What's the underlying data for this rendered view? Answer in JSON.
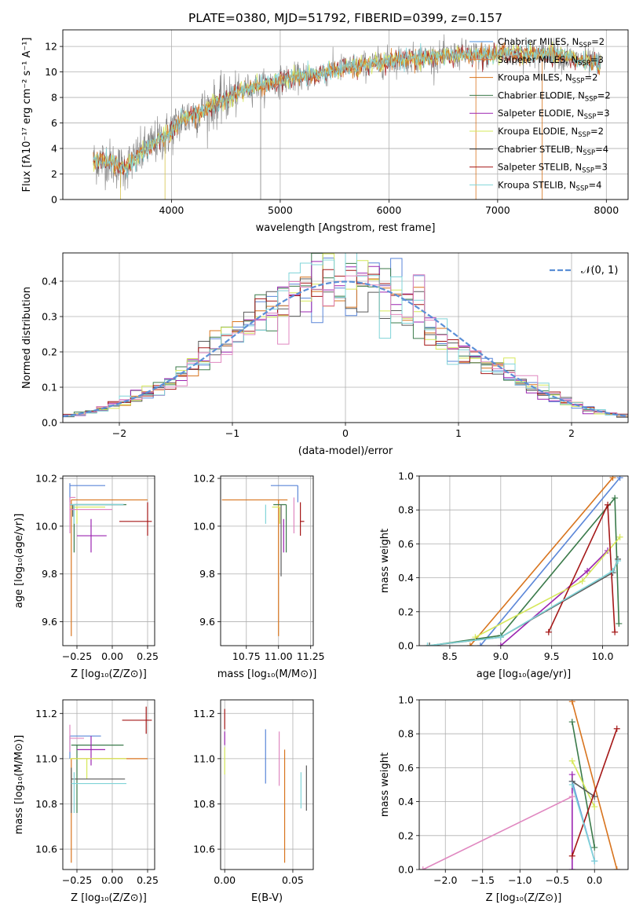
{
  "title": "PLATE=0380, MJD=51792, FIBERID=0399, z=0.157",
  "colors": {
    "Chabrier MILES": "#5a86d8",
    "Salpeter MILES": "#d8741e",
    "Kroupa MILES": "#d8741e",
    "Chabrier ELODIE": "#3a7a4a",
    "Salpeter ELODIE": "#9b24b0",
    "Kroupa ELODIE": "#d6e85a",
    "Chabrier STELIB": "#5a5a5a",
    "Salpeter STELIB": "#a51818",
    "Kroupa STELIB": "#80d4d8",
    "extra": "#e087c0",
    "data": "#808080",
    "normal": "#5b8fd6"
  },
  "legend": [
    {
      "label": "Chabrier MILES, N",
      "sub": "SSP",
      "tail": "=2",
      "color": "#4a90e2"
    },
    {
      "label": "Salpeter MILES, N",
      "sub": "SSP",
      "tail": "=3",
      "color": "#e07b39"
    },
    {
      "label": "Kroupa MILES, N",
      "sub": "SSP",
      "tail": "=2",
      "color": "#d8741e"
    },
    {
      "label": "Chabrier ELODIE, N",
      "sub": "SSP",
      "tail": "=2",
      "color": "#3a7a4a"
    },
    {
      "label": "Salpeter ELODIE, N",
      "sub": "SSP",
      "tail": "=3",
      "color": "#9b24b0"
    },
    {
      "label": "Kroupa ELODIE, N",
      "sub": "SSP",
      "tail": "=2",
      "color": "#d6e85a"
    },
    {
      "label": "Chabrier STELIB, N",
      "sub": "SSP",
      "tail": "=4",
      "color": "#333333"
    },
    {
      "label": "Salpeter STELIB, N",
      "sub": "SSP",
      "tail": "=3",
      "color": "#a51818"
    },
    {
      "label": "Kroupa STELIB, N",
      "sub": "SSP",
      "tail": "=4",
      "color": "#80d4d8"
    }
  ],
  "chart_data": [
    {
      "type": "line",
      "id": "spectrum",
      "xlabel": "wavelength [Angstrom, rest frame]",
      "ylabel": "Flux [fλ10⁻¹⁷ erg cm⁻² s⁻¹ A⁻¹]",
      "xlim": [
        3000,
        8200
      ],
      "ylim": [
        0,
        13.3
      ],
      "xticks": [
        4000,
        5000,
        6000,
        7000,
        8000
      ],
      "yticks": [
        0,
        2,
        4,
        6,
        8,
        10,
        12
      ],
      "continuum": {
        "x": [
          3280,
          3400,
          3550,
          3700,
          3800,
          3950,
          4100,
          4300,
          4500,
          4700,
          4900,
          5100,
          5300,
          5500,
          5700,
          5900,
          6100,
          6300,
          6500,
          6700,
          6900,
          7100,
          7300,
          7500,
          7700,
          7900
        ],
        "y": [
          3.0,
          3.1,
          2.4,
          3.4,
          4.2,
          5.0,
          6.3,
          7.0,
          7.9,
          8.7,
          9.1,
          9.5,
          9.7,
          10.2,
          10.4,
          10.7,
          11.0,
          11.1,
          11.2,
          11.4,
          11.3,
          11.5,
          11.3,
          11.4,
          11.0,
          10.6
        ]
      }
    },
    {
      "type": "bar",
      "id": "residuals",
      "xlabel": "(data-model)/error",
      "ylabel": "Normed distribution",
      "xlim": [
        -2.5,
        2.5
      ],
      "ylim": [
        0,
        0.48
      ],
      "xticks": [
        -2,
        -1,
        0,
        1,
        2
      ],
      "yticks": [
        0.0,
        0.1,
        0.2,
        0.3,
        0.4
      ],
      "legend": "𝒩(0, 1)",
      "bin_width": 0.1
    },
    {
      "type": "scatter",
      "id": "Z-age",
      "xlabel": "Z [log₁₀(Z/Z⊙)]",
      "ylabel": "age  [log₁₀(age/yr)]",
      "xlim": [
        -0.35,
        0.3
      ],
      "ylim": [
        9.5,
        10.21
      ],
      "xticks": [
        -0.25,
        0.0,
        0.25
      ],
      "yticks": [
        9.6,
        9.8,
        10.0,
        10.2
      ],
      "points": [
        {
          "x": -0.29,
          "y": 10.11,
          "xerr": [
            0.0,
            0.54
          ],
          "yerr": [
            0.57,
            0.0
          ],
          "c": "#d8741e"
        },
        {
          "x": -0.3,
          "y": 10.17,
          "xerr": [
            0.0,
            0.25
          ],
          "yerr": [
            0.07,
            0.01
          ],
          "c": "#5a86d8"
        },
        {
          "x": -0.27,
          "y": 10.09,
          "xerr": [
            0.0,
            0.37
          ],
          "yerr": [
            0.2,
            0.0
          ],
          "c": "#3a7a4a"
        },
        {
          "x": -0.15,
          "y": 9.96,
          "xerr": [
            0.1,
            0.11
          ],
          "yerr": [
            0.07,
            0.07
          ],
          "c": "#9b24b0"
        },
        {
          "x": -0.3,
          "y": 10.12,
          "xerr": [
            0.0,
            0.04
          ],
          "yerr": [
            0.15,
            0.0
          ],
          "c": "#e087c0"
        },
        {
          "x": -0.25,
          "y": 10.08,
          "xerr": [
            0.05,
            0.2
          ],
          "yerr": [
            0.07,
            0.0
          ],
          "c": "#d6e85a"
        },
        {
          "x": -0.28,
          "y": 10.09,
          "xerr": [
            0.02,
            0.36
          ],
          "yerr": [
            0.05,
            0.0
          ],
          "c": "#5a5a5a"
        },
        {
          "x": 0.25,
          "y": 10.02,
          "xerr": [
            0.2,
            0.03
          ],
          "yerr": [
            0.06,
            0.08
          ],
          "c": "#a51818"
        },
        {
          "x": -0.27,
          "y": 10.09,
          "xerr": [
            0.03,
            0.35
          ],
          "yerr": [
            0.08,
            0.0
          ],
          "c": "#80d4d8"
        },
        {
          "x": -0.3,
          "y": 10.07,
          "xerr": [
            0.0,
            0.3
          ],
          "yerr": [
            0.0,
            0.0
          ],
          "c": "#e087c0"
        }
      ]
    },
    {
      "type": "scatter",
      "id": "mass-age",
      "xlabel": "mass [log₁₀(M/M⊙)]",
      "ylabel": "",
      "xlim": [
        10.55,
        11.27
      ],
      "ylim": [
        9.5,
        10.21
      ],
      "xticks": [
        10.75,
        11.0,
        11.25
      ],
      "yticks": [
        9.6,
        9.8,
        10.0,
        10.2
      ],
      "points": [
        {
          "x": 11.0,
          "y": 10.11,
          "xerr": [
            0.44,
            0.07
          ],
          "yerr": [
            0.57,
            0.0
          ],
          "c": "#d8741e"
        },
        {
          "x": 11.15,
          "y": 10.17,
          "xerr": [
            0.21,
            0.0
          ],
          "yerr": [
            0.07,
            0.0
          ],
          "c": "#5a86d8"
        },
        {
          "x": 11.06,
          "y": 10.09,
          "xerr": [
            0.1,
            0.0
          ],
          "yerr": [
            0.2,
            0.0
          ],
          "c": "#3a7a4a"
        },
        {
          "x": 11.04,
          "y": 9.96,
          "xerr": [
            0.0,
            0.0
          ],
          "yerr": [
            0.07,
            0.07
          ],
          "c": "#9b24b0"
        },
        {
          "x": 11.12,
          "y": 10.12,
          "xerr": [
            0.0,
            0.0
          ],
          "yerr": [
            0.15,
            0.0
          ],
          "c": "#e087c0"
        },
        {
          "x": 11.01,
          "y": 10.08,
          "xerr": [
            0.06,
            0.0
          ],
          "yerr": [
            0.07,
            0.0
          ],
          "c": "#d6e85a"
        },
        {
          "x": 11.02,
          "y": 10.09,
          "xerr": [
            0.0,
            0.0
          ],
          "yerr": [
            0.3,
            0.0
          ],
          "c": "#5a5a5a"
        },
        {
          "x": 11.17,
          "y": 10.02,
          "xerr": [
            0.0,
            0.03
          ],
          "yerr": [
            0.06,
            0.08
          ],
          "c": "#a51818"
        },
        {
          "x": 10.9,
          "y": 10.09,
          "xerr": [
            0.0,
            0.0
          ],
          "yerr": [
            0.08,
            0.0
          ],
          "c": "#80d4d8"
        }
      ]
    },
    {
      "type": "line",
      "id": "age-weight",
      "xlabel": "age  [log₁₀(age/yr)]",
      "ylabel": "mass weight",
      "xlim": [
        8.2,
        10.25
      ],
      "ylim": [
        0,
        1.0
      ],
      "xticks": [
        8.5,
        9.0,
        9.5,
        10.0
      ],
      "yticks": [
        0.0,
        0.2,
        0.4,
        0.6,
        0.8,
        1.0
      ],
      "series": [
        {
          "c": "#5a86d8",
          "x": [
            8.8,
            10.17
          ],
          "y": [
            0.0,
            0.99
          ]
        },
        {
          "c": "#d8741e",
          "x": [
            8.7,
            10.1
          ],
          "y": [
            0.0,
            0.99
          ]
        },
        {
          "c": "#3a7a4a",
          "x": [
            8.3,
            9.0,
            10.12,
            10.16
          ],
          "y": [
            0.0,
            0.06,
            0.87,
            0.13
          ]
        },
        {
          "c": "#9b24b0",
          "x": [
            9.0,
            9.85,
            10.05
          ],
          "y": [
            0.0,
            0.44,
            0.56
          ]
        },
        {
          "c": "#d6e85a",
          "x": [
            8.75,
            9.8,
            10.17
          ],
          "y": [
            0.05,
            0.38,
            0.64
          ]
        },
        {
          "c": "#5a5a5a",
          "x": [
            8.3,
            9.0,
            10.1,
            10.15
          ],
          "y": [
            0.0,
            0.05,
            0.43,
            0.51
          ]
        },
        {
          "c": "#a51818",
          "x": [
            9.47,
            10.05,
            10.12
          ],
          "y": [
            0.08,
            0.83,
            0.08
          ]
        },
        {
          "c": "#80d4d8",
          "x": [
            8.28,
            9.0,
            10.1,
            10.15
          ],
          "y": [
            0.0,
            0.05,
            0.44,
            0.5
          ]
        }
      ]
    },
    {
      "type": "scatter",
      "id": "Z-mass",
      "xlabel": "Z [log₁₀(Z/Z⊙)]",
      "ylabel": "mass [log₁₀(M/M⊙)]",
      "xlim": [
        -0.35,
        0.3
      ],
      "ylim": [
        10.51,
        11.26
      ],
      "xticks": [
        -0.25,
        0.0,
        0.25
      ],
      "yticks": [
        10.6,
        10.8,
        11.0,
        11.2
      ],
      "points": [
        {
          "x": -0.29,
          "y": 11.0,
          "xerr": [
            0.0,
            0.54
          ],
          "yerr": [
            0.46,
            0.0
          ],
          "c": "#d8741e"
        },
        {
          "x": -0.3,
          "y": 11.1,
          "xerr": [
            0.0,
            0.22
          ],
          "yerr": [
            0.1,
            0.0
          ],
          "c": "#5a86d8"
        },
        {
          "x": -0.25,
          "y": 11.06,
          "xerr": [
            0.04,
            0.33
          ],
          "yerr": [
            0.3,
            0.0
          ],
          "c": "#3a7a4a"
        },
        {
          "x": -0.15,
          "y": 11.04,
          "xerr": [
            0.1,
            0.1
          ],
          "yerr": [
            0.07,
            0.06
          ],
          "c": "#9b24b0"
        },
        {
          "x": -0.3,
          "y": 11.09,
          "xerr": [
            0.0,
            0.1
          ],
          "yerr": [
            0.06,
            0.06
          ],
          "c": "#e087c0"
        },
        {
          "x": -0.18,
          "y": 11.0,
          "xerr": [
            0.12,
            0.28
          ],
          "yerr": [
            0.09,
            0.0
          ],
          "c": "#d6e85a"
        },
        {
          "x": -0.29,
          "y": 10.91,
          "xerr": [
            0.0,
            0.38
          ],
          "yerr": [
            0.15,
            0.05
          ],
          "c": "#5a5a5a"
        },
        {
          "x": 0.24,
          "y": 11.17,
          "xerr": [
            0.17,
            0.04
          ],
          "yerr": [
            0.06,
            0.06
          ],
          "c": "#a51818"
        },
        {
          "x": -0.27,
          "y": 10.89,
          "xerr": [
            0.02,
            0.37
          ],
          "yerr": [
            0.13,
            0.05
          ],
          "c": "#80d4d8"
        }
      ]
    },
    {
      "type": "scatter",
      "id": "EBV-mass",
      "xlabel": "E(B-V)",
      "ylabel": "",
      "xlim": [
        -0.003,
        0.065
      ],
      "ylim": [
        10.51,
        11.26
      ],
      "xticks": [
        0.0,
        0.05
      ],
      "yticks": [
        10.6,
        10.8,
        11.0,
        11.2
      ],
      "points": [
        {
          "x": 0.0,
          "y": 11.18,
          "yerr": [
            0.05,
            0.04
          ],
          "c": "#a51818"
        },
        {
          "x": 0.0,
          "y": 11.08,
          "yerr": [
            0.02,
            0.04
          ],
          "c": "#9b24b0"
        },
        {
          "x": 0.0,
          "y": 10.99,
          "yerr": [
            0.06,
            0.06
          ],
          "c": "#d6e85a"
        },
        {
          "x": 0.03,
          "y": 11.01,
          "yerr": [
            0.12,
            0.12
          ],
          "c": "#5a86d8"
        },
        {
          "x": 0.04,
          "y": 10.99,
          "yerr": [
            0.11,
            0.13
          ],
          "c": "#e087c0"
        },
        {
          "x": 0.044,
          "y": 10.74,
          "yerr": [
            0.2,
            0.3
          ],
          "c": "#d8741e"
        },
        {
          "x": 0.056,
          "y": 10.86,
          "yerr": [
            0.08,
            0.08
          ],
          "c": "#80d4d8"
        },
        {
          "x": 0.06,
          "y": 10.87,
          "yerr": [
            0.1,
            0.1
          ],
          "c": "#5a5a5a"
        }
      ]
    },
    {
      "type": "line",
      "id": "Z-weight",
      "xlabel": "Z [log₁₀(Z/Z⊙)]",
      "ylabel": "mass weight",
      "xlim": [
        -2.35,
        0.45
      ],
      "ylim": [
        0,
        1.0
      ],
      "xticks": [
        -2.0,
        -1.5,
        -1.0,
        -0.5,
        0.0
      ],
      "yticks": [
        0.0,
        0.2,
        0.4,
        0.6,
        0.8,
        1.0
      ],
      "series": [
        {
          "c": "#5a86d8",
          "x": [
            -0.3,
            0.0
          ],
          "y": [
            0.52,
            0.05
          ]
        },
        {
          "c": "#d8741e",
          "x": [
            -0.3,
            0.3
          ],
          "y": [
            0.99,
            0.0
          ]
        },
        {
          "c": "#3a7a4a",
          "x": [
            -0.3,
            0.0
          ],
          "y": [
            0.87,
            0.13
          ]
        },
        {
          "c": "#9b24b0",
          "x": [
            -0.3,
            -0.3
          ],
          "y": [
            0.56,
            0.0
          ]
        },
        {
          "c": "#d6e85a",
          "x": [
            -0.3,
            0.0
          ],
          "y": [
            0.64,
            0.37
          ]
        },
        {
          "c": "#5a5a5a",
          "x": [
            -0.3,
            0.0
          ],
          "y": [
            0.52,
            0.43
          ]
        },
        {
          "c": "#a51818",
          "x": [
            -0.3,
            0.3
          ],
          "y": [
            0.08,
            0.83
          ]
        },
        {
          "c": "#80d4d8",
          "x": [
            -0.3,
            0.0
          ],
          "y": [
            0.5,
            0.05
          ]
        },
        {
          "c": "#e087c0",
          "x": [
            -2.3,
            -0.3
          ],
          "y": [
            0.0,
            0.43
          ]
        }
      ]
    }
  ]
}
